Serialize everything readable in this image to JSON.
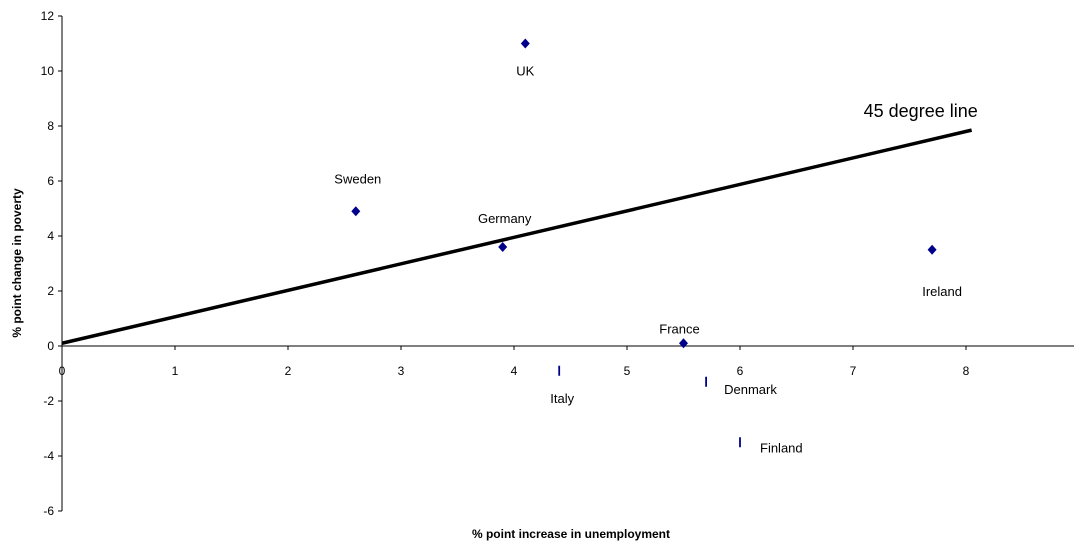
{
  "chart_data": {
    "type": "scatter",
    "title": "",
    "xlabel": "% point increase in unemployment",
    "ylabel": "% point change in poverty",
    "xlim": [
      0,
      9
    ],
    "ylim": [
      -6,
      12
    ],
    "x_ticks": [
      0,
      1,
      2,
      3,
      4,
      5,
      6,
      7,
      8
    ],
    "y_ticks": [
      -6,
      -4,
      -2,
      0,
      2,
      4,
      6,
      8,
      10,
      12
    ],
    "grid": false,
    "legend": "none",
    "points": [
      {
        "label": "UK",
        "x": 4.1,
        "y": 11.0,
        "marker": "diamond"
      },
      {
        "label": "Sweden",
        "x": 2.6,
        "y": 4.9,
        "marker": "diamond"
      },
      {
        "label": "Germany",
        "x": 3.9,
        "y": 3.6,
        "marker": "diamond"
      },
      {
        "label": "Ireland",
        "x": 7.7,
        "y": 3.5,
        "marker": "diamond"
      },
      {
        "label": "France",
        "x": 5.5,
        "y": 0.1,
        "marker": "diamond"
      },
      {
        "label": "Italy",
        "x": 4.4,
        "y": -0.9,
        "marker": "bar"
      },
      {
        "label": "Denmark",
        "x": 5.7,
        "y": -1.3,
        "marker": "bar"
      },
      {
        "label": "Finland",
        "x": 6.0,
        "y": -3.5,
        "marker": "bar"
      }
    ],
    "reference_line": {
      "label": "45 degree line",
      "from": [
        0,
        0.1
      ],
      "to": [
        8.05,
        7.85
      ]
    },
    "colors": {
      "marker": "#00008B",
      "line": "#000000",
      "axis": "#000000"
    }
  }
}
